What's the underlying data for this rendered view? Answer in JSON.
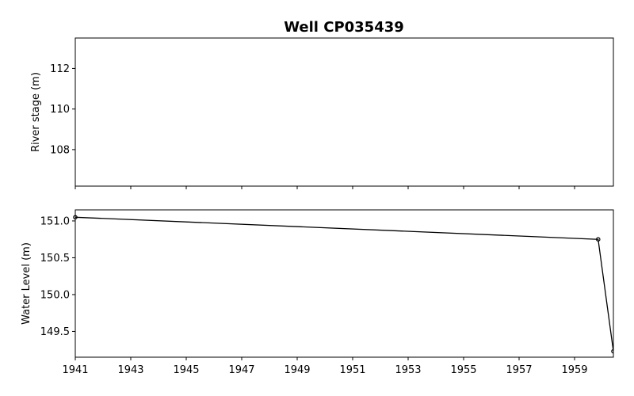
{
  "chart_data": {
    "title": "Well CP035439",
    "panels": [
      {
        "type": "line",
        "ylabel": "River stage (m)",
        "ylim": [
          106.2,
          113.5
        ],
        "yticks": [
          108,
          110,
          112
        ],
        "ytick_labels": [
          "108",
          "110",
          "112"
        ],
        "xlim": [
          1941,
          1960.4
        ],
        "xticks": [
          1941,
          1943,
          1945,
          1947,
          1949,
          1951,
          1953,
          1955,
          1957,
          1959
        ],
        "xtick_labels_visible": false,
        "series": []
      },
      {
        "type": "line",
        "ylabel": "Water Level (m)",
        "ylim": [
          149.15,
          151.15
        ],
        "yticks": [
          149.5,
          150.0,
          150.5,
          151.0
        ],
        "ytick_labels": [
          "149.5",
          "150.0",
          "150.5",
          "151.0"
        ],
        "xlim": [
          1941,
          1960.4
        ],
        "xticks": [
          1941,
          1943,
          1945,
          1947,
          1949,
          1951,
          1953,
          1955,
          1957,
          1959
        ],
        "xtick_labels": [
          "1941",
          "1943",
          "1945",
          "1947",
          "1949",
          "1951",
          "1953",
          "1955",
          "1957",
          "1959"
        ],
        "series": [
          {
            "x": [
              1941.0,
              1959.85,
              1960.4
            ],
            "y": [
              151.05,
              150.75,
              149.23
            ],
            "color": "#000000",
            "marker": "open-circle"
          }
        ]
      }
    ]
  }
}
